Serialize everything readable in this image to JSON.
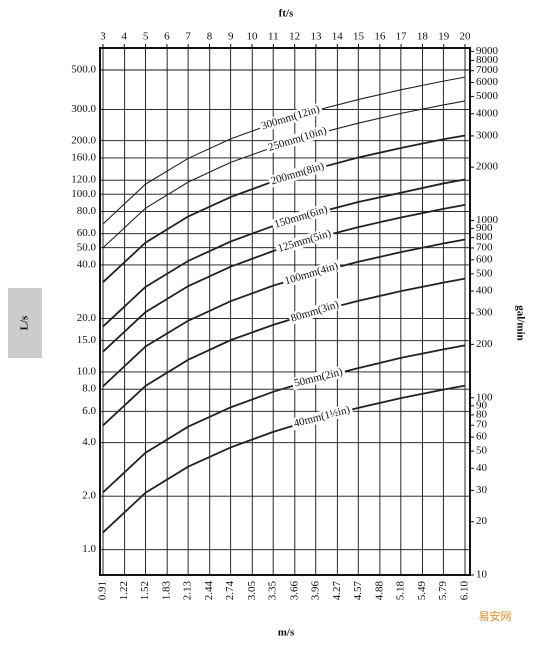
{
  "chart_data": {
    "type": "line",
    "x_label": "m/s",
    "x2_label": "ft/s",
    "y_label": "L/s",
    "y2_label": "gal/min",
    "watermark": "易安网",
    "ylog": true,
    "y2log": true,
    "grid": true,
    "xlim": [
      0.91,
      6.1
    ],
    "xticks": [
      0.91,
      1.22,
      1.52,
      1.83,
      2.13,
      2.44,
      2.74,
      3.05,
      3.35,
      3.66,
      3.96,
      4.27,
      4.57,
      4.88,
      5.18,
      5.49,
      5.79,
      {
        "value": 6.1,
        "label": "6.10"
      }
    ],
    "x2lim": [
      3,
      20
    ],
    "x2ticks": [
      3,
      4,
      5,
      6,
      7,
      8,
      9,
      10,
      11,
      12,
      13,
      14,
      15,
      16,
      17,
      18,
      19,
      20
    ],
    "ylim": [
      0.72,
      665
    ],
    "yticks": [
      {
        "value": 1,
        "label": "1.0"
      },
      {
        "value": 2,
        "label": "2.0"
      },
      {
        "value": 4,
        "label": "4.0"
      },
      {
        "value": 6,
        "label": "6.0"
      },
      {
        "value": 8,
        "label": "8.0"
      },
      {
        "value": 10,
        "label": "10.0"
      },
      {
        "value": 15,
        "label": "15.0"
      },
      {
        "value": 20,
        "label": "20.0"
      },
      {
        "value": 40,
        "label": "40.0"
      },
      {
        "value": 50,
        "label": "50.0"
      },
      {
        "value": 60,
        "label": "60.0"
      },
      {
        "value": 80,
        "label": "80.0"
      },
      {
        "value": 100,
        "label": "100.0"
      },
      {
        "value": 120,
        "label": "120.0"
      },
      {
        "value": 160,
        "label": "160.0"
      },
      {
        "value": 200,
        "label": "200.0"
      },
      {
        "value": 300,
        "label": "300.0"
      },
      {
        "value": 500,
        "label": "500.0"
      }
    ],
    "y2lim": [
      10,
      9400
    ],
    "y2ticks": [
      10,
      20,
      30,
      40,
      50,
      60,
      70,
      80,
      90,
      100,
      200,
      300,
      400,
      500,
      600,
      700,
      800,
      900,
      1000,
      2000,
      3000,
      4000,
      5000,
      6000,
      7000,
      8000,
      9000
    ],
    "x": [
      0.91,
      1.52,
      2.13,
      2.74,
      3.35,
      3.96,
      4.57,
      5.18,
      5.79,
      6.1
    ],
    "series": [
      {
        "name": "300mm(12in)",
        "color": "#222222",
        "values": [
          68,
          114,
          159,
          205,
          250,
          296,
          341,
          387,
          433,
          456
        ]
      },
      {
        "name": "250mm(10in)",
        "color": "#222222",
        "values": [
          50,
          83.5,
          117,
          151,
          184,
          218,
          251,
          285,
          318,
          335
        ]
      },
      {
        "name": "200mm(8in)",
        "color": "#222222",
        "values": [
          32,
          53.4,
          74.9,
          96.4,
          118,
          139,
          161,
          182,
          204,
          214
        ]
      },
      {
        "name": "150mm(6in)",
        "color": "#222222",
        "values": [
          18,
          30.1,
          42.1,
          54.2,
          66.3,
          78.3,
          90.4,
          102,
          115,
          121
        ]
      },
      {
        "name": "125mm(5in)",
        "color": "#222222",
        "values": [
          13,
          21.7,
          30.4,
          39.1,
          47.9,
          56.6,
          65.3,
          74,
          82.7,
          87.1
        ]
      },
      {
        "name": "100mm(4in)",
        "color": "#222222",
        "values": [
          8.3,
          13.9,
          19.4,
          25,
          30.6,
          36.1,
          41.7,
          47.2,
          52.8,
          55.6
        ]
      },
      {
        "name": "80mm(3in)",
        "color": "#222222",
        "values": [
          5,
          8.35,
          11.7,
          15.1,
          18.4,
          21.8,
          25.1,
          28.5,
          31.8,
          33.5
        ]
      },
      {
        "name": "50mm(2in)",
        "color": "#222222",
        "values": [
          2.1,
          3.51,
          4.92,
          6.32,
          7.73,
          9.14,
          10.5,
          12,
          13.4,
          14.1
        ]
      },
      {
        "name": "40mm(1½in)",
        "color": "#222222",
        "values": [
          1.25,
          2.09,
          2.93,
          3.76,
          4.6,
          5.44,
          6.28,
          7.12,
          7.95,
          8.38
        ]
      }
    ]
  }
}
